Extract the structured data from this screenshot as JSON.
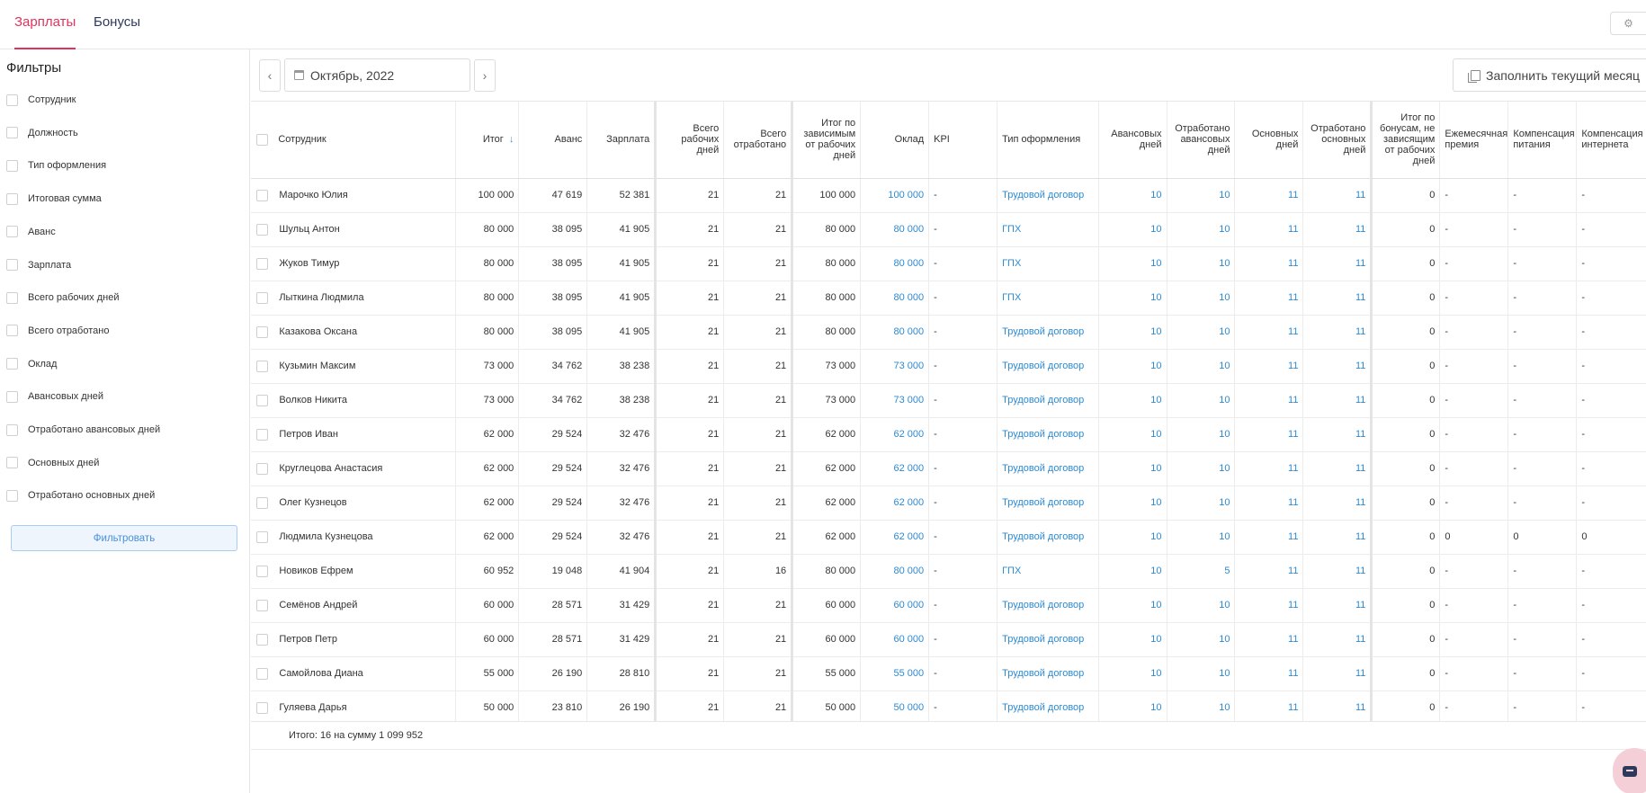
{
  "tabs": [
    {
      "label": "Зарплаты",
      "active": true
    },
    {
      "label": "Бонусы",
      "active": false
    }
  ],
  "sidebar": {
    "title": "Фильтры",
    "filters": [
      "Сотрудник",
      "Должность",
      "Тип оформления",
      "Итоговая сумма",
      "Аванс",
      "Зарплата",
      "Всего рабочих дней",
      "Всего отработано",
      "Оклад",
      "Авансовых дней",
      "Отработано авансовых дней",
      "Основных дней",
      "Отработано основных дней"
    ],
    "filter_button": "Фильтровать"
  },
  "toolbar": {
    "prev_label": "‹",
    "next_label": "›",
    "period": "Октябрь, 2022",
    "fill_button": "Заполнить текущий месяц"
  },
  "table": {
    "columns": [
      "Сотрудник",
      "Итог",
      "Аванс",
      "Зарплата",
      "Всего рабочих дней",
      "Всего отработано",
      "Итог по зависимым от рабочих дней",
      "Оклад",
      "KPI",
      "Тип оформления",
      "Авансовых дней",
      "Отработано авансовых дней",
      "Основных дней",
      "Отработано основных дней",
      "Итог по бонусам, не зависящим от рабочих дней",
      "Ежемесячная премия",
      "Компенсация питания",
      "Компенсация интернета"
    ],
    "sort_icon": "arrow-down-icon",
    "rows": [
      [
        "Марочко Юлия",
        "100 000",
        "47 619",
        "52 381",
        "21",
        "21",
        "100 000",
        "100 000",
        "-",
        "Трудовой договор",
        "10",
        "10",
        "11",
        "11",
        "0",
        "-",
        "-",
        "-"
      ],
      [
        "Шульц Антон",
        "80 000",
        "38 095",
        "41 905",
        "21",
        "21",
        "80 000",
        "80 000",
        "-",
        "ГПХ",
        "10",
        "10",
        "11",
        "11",
        "0",
        "-",
        "-",
        "-"
      ],
      [
        "Жуков Тимур",
        "80 000",
        "38 095",
        "41 905",
        "21",
        "21",
        "80 000",
        "80 000",
        "-",
        "ГПХ",
        "10",
        "10",
        "11",
        "11",
        "0",
        "-",
        "-",
        "-"
      ],
      [
        "Лыткина Людмила",
        "80 000",
        "38 095",
        "41 905",
        "21",
        "21",
        "80 000",
        "80 000",
        "-",
        "ГПХ",
        "10",
        "10",
        "11",
        "11",
        "0",
        "-",
        "-",
        "-"
      ],
      [
        "Казакова Оксана",
        "80 000",
        "38 095",
        "41 905",
        "21",
        "21",
        "80 000",
        "80 000",
        "-",
        "Трудовой договор",
        "10",
        "10",
        "11",
        "11",
        "0",
        "-",
        "-",
        "-"
      ],
      [
        "Кузьмин Максим",
        "73 000",
        "34 762",
        "38 238",
        "21",
        "21",
        "73 000",
        "73 000",
        "-",
        "Трудовой договор",
        "10",
        "10",
        "11",
        "11",
        "0",
        "-",
        "-",
        "-"
      ],
      [
        "Волков Никита",
        "73 000",
        "34 762",
        "38 238",
        "21",
        "21",
        "73 000",
        "73 000",
        "-",
        "Трудовой договор",
        "10",
        "10",
        "11",
        "11",
        "0",
        "-",
        "-",
        "-"
      ],
      [
        "Петров Иван",
        "62 000",
        "29 524",
        "32 476",
        "21",
        "21",
        "62 000",
        "62 000",
        "-",
        "Трудовой договор",
        "10",
        "10",
        "11",
        "11",
        "0",
        "-",
        "-",
        "-"
      ],
      [
        "Круглецова Анастасия",
        "62 000",
        "29 524",
        "32 476",
        "21",
        "21",
        "62 000",
        "62 000",
        "-",
        "Трудовой договор",
        "10",
        "10",
        "11",
        "11",
        "0",
        "-",
        "-",
        "-"
      ],
      [
        "Олег Кузнецов",
        "62 000",
        "29 524",
        "32 476",
        "21",
        "21",
        "62 000",
        "62 000",
        "-",
        "Трудовой договор",
        "10",
        "10",
        "11",
        "11",
        "0",
        "-",
        "-",
        "-"
      ],
      [
        "Людмила Кузнецова",
        "62 000",
        "29 524",
        "32 476",
        "21",
        "21",
        "62 000",
        "62 000",
        "-",
        "Трудовой договор",
        "10",
        "10",
        "11",
        "11",
        "0",
        "0",
        "0",
        "0"
      ],
      [
        "Новиков Ефрем",
        "60 952",
        "19 048",
        "41 904",
        "21",
        "16",
        "80 000",
        "80 000",
        "-",
        "ГПХ",
        "10",
        "5",
        "11",
        "11",
        "0",
        "-",
        "-",
        "-"
      ],
      [
        "Семёнов Андрей",
        "60 000",
        "28 571",
        "31 429",
        "21",
        "21",
        "60 000",
        "60 000",
        "-",
        "Трудовой договор",
        "10",
        "10",
        "11",
        "11",
        "0",
        "-",
        "-",
        "-"
      ],
      [
        "Петров Петр",
        "60 000",
        "28 571",
        "31 429",
        "21",
        "21",
        "60 000",
        "60 000",
        "-",
        "Трудовой договор",
        "10",
        "10",
        "11",
        "11",
        "0",
        "-",
        "-",
        "-"
      ],
      [
        "Самойлова Диана",
        "55 000",
        "26 190",
        "28 810",
        "21",
        "21",
        "55 000",
        "55 000",
        "-",
        "Трудовой договор",
        "10",
        "10",
        "11",
        "11",
        "0",
        "-",
        "-",
        "-"
      ],
      [
        "Гуляева Дарья",
        "50 000",
        "23 810",
        "26 190",
        "21",
        "21",
        "50 000",
        "50 000",
        "-",
        "Трудовой договор",
        "10",
        "10",
        "11",
        "11",
        "0",
        "-",
        "-",
        "-"
      ]
    ]
  },
  "footer": {
    "summary": "Итого: 16 на сумму 1 099 952"
  },
  "colors": {
    "accent": "#e2325b",
    "link": "#2d8ad2",
    "nav_text": "#2e3a5c"
  }
}
